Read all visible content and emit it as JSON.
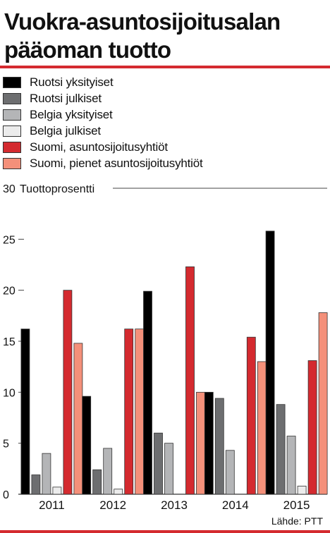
{
  "title_lines": [
    "Vuokra-asuntosijoitusalan",
    "pääoman tuotto"
  ],
  "legend": [
    {
      "label": "Ruotsi yksityiset",
      "color": "#000000"
    },
    {
      "label": "Ruotsi julkiset",
      "color": "#6d6e70"
    },
    {
      "label": "Belgia yksityiset",
      "color": "#b4b5b7"
    },
    {
      "label": "Belgia julkiset",
      "color": "#ececec"
    },
    {
      "label": "Suomi, asuntosijoitusyhtiöt",
      "color": "#d42a2f"
    },
    {
      "label": "Suomi, pienet asuntosijoitusyhtiöt",
      "color": "#f4907a"
    }
  ],
  "source": "Lähde: PTT",
  "chart_data": {
    "type": "bar",
    "ylabel": "Tuottoprosentti",
    "ylim": [
      0,
      30
    ],
    "yticks": [
      0,
      5,
      10,
      15,
      20,
      25,
      30
    ],
    "categories": [
      "2011",
      "2012",
      "2013",
      "2014",
      "2015"
    ],
    "series": [
      {
        "name": "Ruotsi yksityiset",
        "color": "#000000",
        "values": [
          16.2,
          9.6,
          19.9,
          10.0,
          25.8
        ]
      },
      {
        "name": "Ruotsi julkiset",
        "color": "#6d6e70",
        "values": [
          1.9,
          2.4,
          6.0,
          9.4,
          8.8
        ]
      },
      {
        "name": "Belgia yksityiset",
        "color": "#b4b5b7",
        "values": [
          4.0,
          4.5,
          5.0,
          4.3,
          5.7
        ]
      },
      {
        "name": "Belgia julkiset",
        "color": "#ececec",
        "values": [
          0.7,
          0.5,
          0.0,
          0.0,
          0.8
        ]
      },
      {
        "name": "Suomi, asuntosijoitusyhtiöt",
        "color": "#d42a2f",
        "values": [
          20.0,
          16.2,
          22.3,
          15.4,
          13.1
        ]
      },
      {
        "name": "Suomi, pienet asuntosijoitusyhtiöt",
        "color": "#f4907a",
        "values": [
          14.8,
          16.2,
          10.0,
          13.0,
          17.8
        ]
      }
    ],
    "grid": false,
    "legend_position": "top"
  }
}
